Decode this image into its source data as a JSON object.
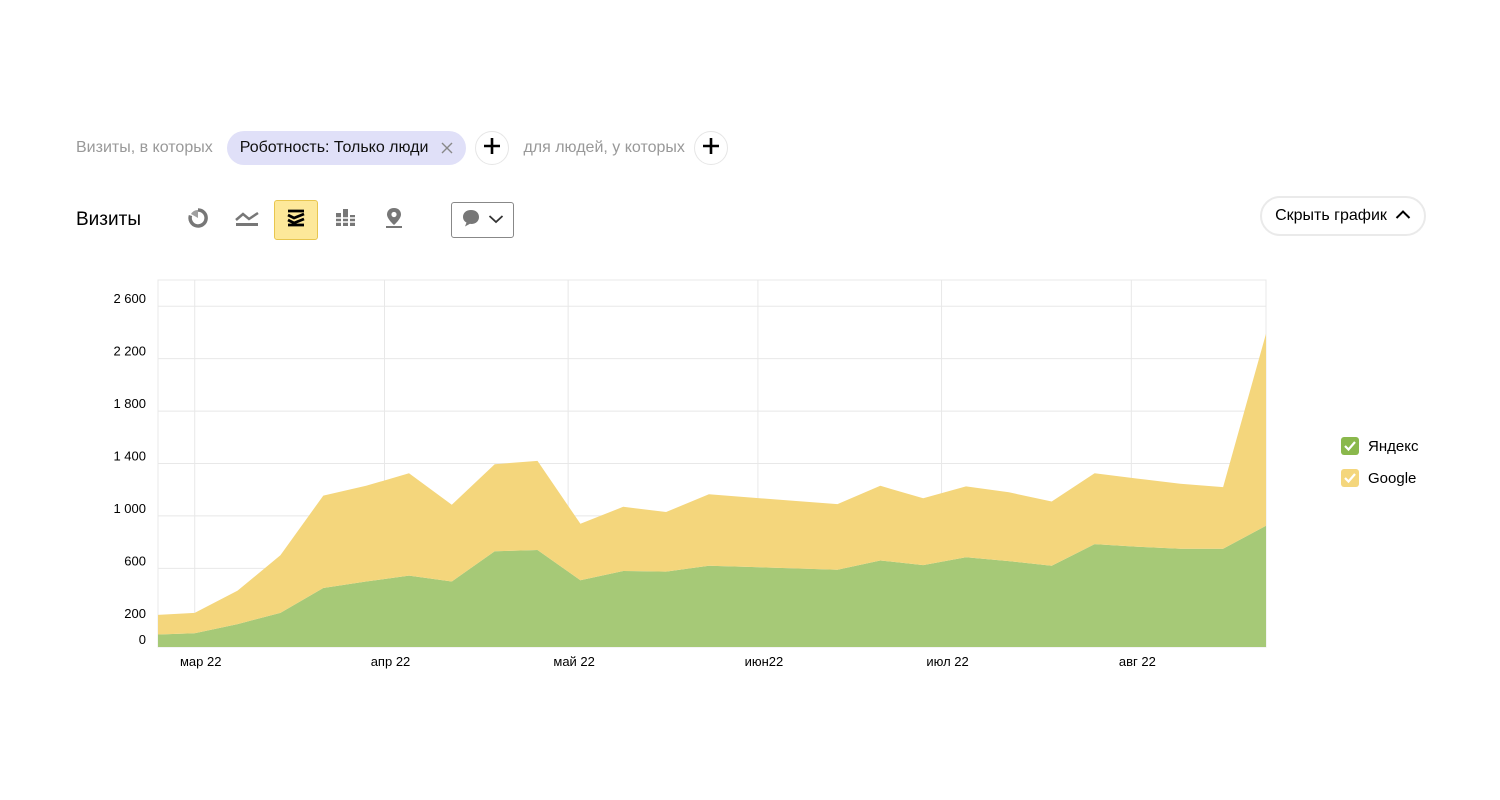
{
  "filters": {
    "visits_label": "Визиты, в которых",
    "chip_label": "Роботность: Только люди",
    "people_label": "для людей, у которых"
  },
  "toolbar": {
    "metric_label": "Визиты",
    "chart_types": [
      "pie-chart-icon",
      "line-chart-icon",
      "stacked-area-icon",
      "bar-chart-icon",
      "map-icon"
    ],
    "active_chart_type": "stacked-area-icon",
    "hide_chart_label": "Скрыть график"
  },
  "colors": {
    "yandex": "#a6c977",
    "google": "#f4d67c",
    "yandex_check": "#8ab84c",
    "google_check": "#f4d67c",
    "grid": "#e8e8e8",
    "active_bg": "#fde89a"
  },
  "chart_data": {
    "type": "area",
    "stacked": true,
    "x": [
      "2022-02-23",
      "2022-03-01",
      "2022-03-08",
      "2022-03-15",
      "2022-03-22",
      "2022-03-29",
      "2022-04-05",
      "2022-04-12",
      "2022-04-19",
      "2022-04-26",
      "2022-05-03",
      "2022-05-10",
      "2022-05-17",
      "2022-05-24",
      "2022-05-31",
      "2022-06-07",
      "2022-06-14",
      "2022-06-21",
      "2022-06-28",
      "2022-07-05",
      "2022-07-12",
      "2022-07-19",
      "2022-07-26",
      "2022-08-02",
      "2022-08-09",
      "2022-08-16",
      "2022-08-23"
    ],
    "series": [
      {
        "name": "Яндекс",
        "values": [
          95,
          105,
          175,
          260,
          450,
          500,
          545,
          500,
          730,
          740,
          510,
          580,
          575,
          620,
          610,
          600,
          590,
          660,
          625,
          685,
          655,
          620,
          785,
          765,
          750,
          750,
          925
        ]
      },
      {
        "name": "Google",
        "values": [
          150,
          155,
          255,
          440,
          705,
          730,
          780,
          585,
          665,
          680,
          430,
          490,
          455,
          545,
          530,
          515,
          500,
          570,
          510,
          540,
          525,
          490,
          540,
          520,
          495,
          470,
          1465
        ]
      }
    ],
    "ylim": [
      0,
      2800
    ],
    "yticks": [
      0,
      200,
      600,
      1000,
      1400,
      1800,
      2200,
      2600
    ],
    "ytick_labels": [
      "0",
      "200",
      "600",
      "1 000",
      "1 400",
      "1 800",
      "2 200",
      "2 600"
    ],
    "xticks": [
      "2022-03-01",
      "2022-04-01",
      "2022-05-01",
      "2022-06-01",
      "2022-07-01",
      "2022-08-01"
    ],
    "xtick_labels": [
      "мар 22",
      "апр 22",
      "май 22",
      "июн22",
      "июл 22",
      "авг 22"
    ],
    "grid": true,
    "legend": "right"
  }
}
